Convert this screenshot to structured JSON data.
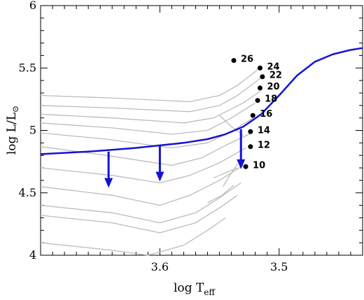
{
  "chart_data": {
    "type": "line",
    "xlabel": "log T",
    "xlabel_sub": "eff",
    "ylabel": "log L/L",
    "ylabel_sub": "⊙",
    "xlim": [
      3.7,
      3.43
    ],
    "ylim": [
      4.0,
      6.0
    ],
    "x_ticks": [
      3.6,
      3.5
    ],
    "x_tick_labels": [
      "3.6",
      "3.5"
    ],
    "y_ticks": [
      4.0,
      4.5,
      5.0,
      5.5,
      6.0
    ],
    "y_tick_labels": [
      "4",
      "4.5",
      "5",
      "5.5",
      "6"
    ],
    "colors": {
      "blue": "#1414d2",
      "gray": "#bcbcbc",
      "dot": "#000000"
    },
    "blue_curve": {
      "x": [
        3.7,
        3.68,
        3.66,
        3.64,
        3.62,
        3.6,
        3.58,
        3.56,
        3.545,
        3.53,
        3.515,
        3.5,
        3.485,
        3.47,
        3.455,
        3.44,
        3.43
      ],
      "y": [
        4.81,
        4.82,
        4.83,
        4.845,
        4.86,
        4.88,
        4.9,
        4.93,
        4.97,
        5.03,
        5.13,
        5.28,
        5.44,
        5.55,
        5.61,
        5.645,
        5.66
      ]
    },
    "arrows": [
      {
        "x": 3.643,
        "y_from": 4.83,
        "y_to": 4.54
      },
      {
        "x": 3.6,
        "y_from": 4.88,
        "y_to": 4.59
      },
      {
        "x": 3.532,
        "y_from": 5.01,
        "y_to": 4.69
      }
    ],
    "gray_tracks": [
      {
        "x": [
          3.7,
          3.64,
          3.575,
          3.55,
          3.535,
          3.52,
          3.515
        ],
        "y": [
          5.28,
          5.26,
          5.23,
          5.28,
          5.36,
          5.47,
          5.52
        ]
      },
      {
        "x": [
          3.7,
          3.64,
          3.575,
          3.55,
          3.535,
          3.518,
          3.513
        ],
        "y": [
          5.2,
          5.18,
          5.15,
          5.2,
          5.28,
          5.4,
          5.45
        ]
      },
      {
        "x": [
          3.7,
          3.64,
          3.58,
          3.555,
          3.53,
          3.515
        ],
        "y": [
          5.13,
          5.1,
          5.06,
          5.1,
          5.22,
          5.32
        ]
      },
      {
        "x": [
          3.7,
          3.64,
          3.59,
          3.56,
          3.54,
          3.52
        ],
        "y": [
          5.06,
          5.02,
          4.97,
          5.0,
          5.1,
          5.22
        ]
      },
      {
        "x": [
          3.7,
          3.645,
          3.59,
          3.56,
          3.54,
          3.522
        ],
        "y": [
          4.98,
          4.93,
          4.86,
          4.9,
          4.99,
          5.1
        ]
      },
      {
        "x": [
          3.7,
          3.645,
          3.59,
          3.565,
          3.545,
          3.525
        ],
        "y": [
          4.87,
          4.8,
          4.72,
          4.78,
          4.88,
          4.97
        ]
      },
      {
        "x": [
          3.7,
          3.64,
          3.6,
          3.575,
          3.55,
          3.528
        ],
        "y": [
          4.7,
          4.64,
          4.58,
          4.64,
          4.74,
          4.86
        ]
      },
      {
        "x": [
          3.7,
          3.64,
          3.6,
          3.575,
          3.55,
          3.53
        ],
        "y": [
          4.55,
          4.48,
          4.4,
          4.48,
          4.6,
          4.72
        ]
      },
      {
        "x": [
          3.7,
          3.64,
          3.6,
          3.57,
          3.55,
          3.532
        ],
        "y": [
          4.4,
          4.34,
          4.26,
          4.34,
          4.46,
          4.58
        ]
      },
      {
        "x": [
          3.7,
          3.64,
          3.6,
          3.57,
          3.55,
          3.535
        ],
        "y": [
          4.32,
          4.26,
          4.18,
          4.26,
          4.38,
          4.48
        ]
      },
      {
        "x": [
          3.7,
          3.64,
          3.61,
          3.58,
          3.56,
          3.545
        ],
        "y": [
          4.1,
          4.04,
          4.0,
          4.08,
          4.2,
          4.3
        ]
      }
    ],
    "gray_branches": [
      {
        "x": [
          3.555,
          3.545,
          3.535
        ],
        "y": [
          4.62,
          4.66,
          4.7
        ]
      },
      {
        "x": [
          3.547,
          3.542,
          3.535
        ],
        "y": [
          4.55,
          4.63,
          4.73
        ]
      },
      {
        "x": [
          3.56,
          3.548,
          3.538
        ],
        "y": [
          4.42,
          4.48,
          4.56
        ]
      },
      {
        "x": [
          3.55,
          3.54,
          3.53
        ],
        "y": [
          5.12,
          5.03,
          4.96
        ]
      }
    ],
    "endpoints": [
      {
        "label": "26",
        "x": 3.538,
        "y": 5.56
      },
      {
        "label": "24",
        "x": 3.516,
        "y": 5.5
      },
      {
        "label": "22",
        "x": 3.514,
        "y": 5.43
      },
      {
        "label": "20",
        "x": 3.516,
        "y": 5.34
      },
      {
        "label": "18",
        "x": 3.518,
        "y": 5.24
      },
      {
        "label": "16",
        "x": 3.522,
        "y": 5.12
      },
      {
        "label": "14",
        "x": 3.524,
        "y": 4.99
      },
      {
        "label": "12",
        "x": 3.524,
        "y": 4.87
      },
      {
        "label": "10",
        "x": 3.528,
        "y": 4.71
      }
    ]
  }
}
